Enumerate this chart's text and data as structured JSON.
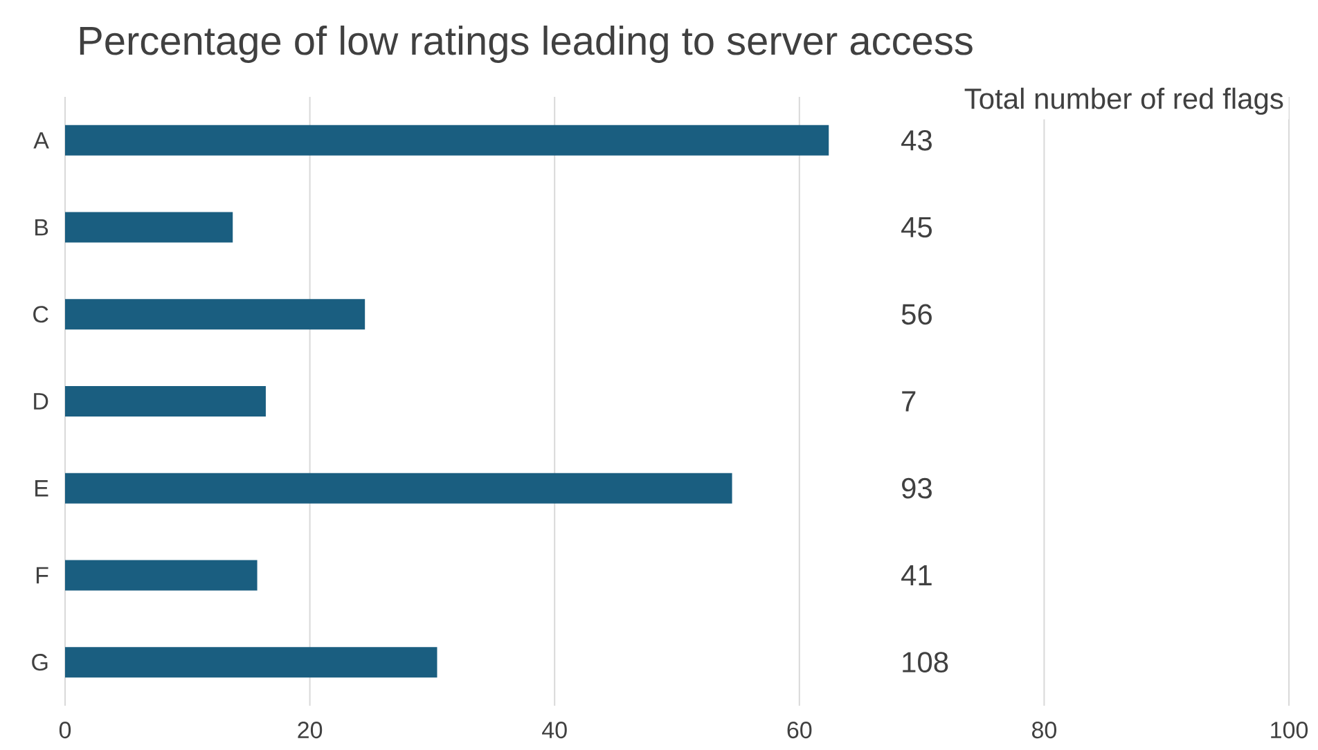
{
  "chart_data": {
    "type": "bar",
    "orientation": "horizontal",
    "title": "Percentage of low ratings leading to server access",
    "categories": [
      "A",
      "B",
      "C",
      "D",
      "E",
      "F",
      "G"
    ],
    "values": [
      62.4,
      13.7,
      24.5,
      16.4,
      54.5,
      15.7,
      30.4
    ],
    "color": "#1a5e80",
    "xlim": [
      0,
      100
    ],
    "xticks": [
      0,
      20,
      40,
      60,
      80,
      100
    ],
    "grid": "x",
    "annotations": [
      "Total number of red flags",
      "43",
      "45",
      "56",
      "7",
      "93",
      "41",
      "108"
    ]
  }
}
